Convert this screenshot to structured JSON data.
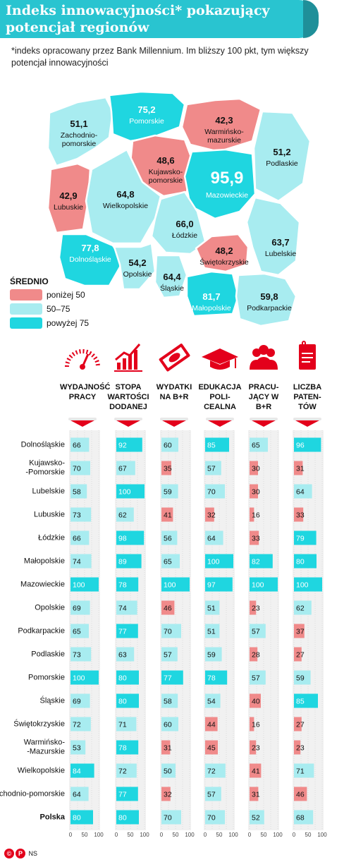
{
  "header": {
    "title": "Indeks innowacyjności* pokazujący potencjał regionów",
    "subtitle": "*indeks opracowany przez Bank Millennium. Im bliższy 100 pkt, tym większy potencjał innowacyjności"
  },
  "map": {
    "regions": [
      {
        "name": "Zachodnio-pomorskie",
        "value": "51,1",
        "category": "mid"
      },
      {
        "name": "Pomorskie",
        "value": "75,2",
        "category": "high"
      },
      {
        "name": "Warmińsko-mazurskie",
        "value": "42,3",
        "category": "low"
      },
      {
        "name": "Podlaskie",
        "value": "51,2",
        "category": "mid"
      },
      {
        "name": "Kujawsko-pomorskie",
        "value": "48,6",
        "category": "low"
      },
      {
        "name": "Mazowieckie",
        "value": "95,9",
        "category": "high"
      },
      {
        "name": "Lubuskie",
        "value": "42,9",
        "category": "low"
      },
      {
        "name": "Wielkopolskie",
        "value": "64,8",
        "category": "mid"
      },
      {
        "name": "Łódzkie",
        "value": "66,0",
        "category": "mid"
      },
      {
        "name": "Lubelskie",
        "value": "63,7",
        "category": "mid"
      },
      {
        "name": "Dolnośląskie",
        "value": "77,8",
        "category": "high"
      },
      {
        "name": "Opolskie",
        "value": "54,2",
        "category": "mid"
      },
      {
        "name": "Świętokrzyskie",
        "value": "48,2",
        "category": "low"
      },
      {
        "name": "Śląskie",
        "value": "64,4",
        "category": "mid"
      },
      {
        "name": "Małopolskie",
        "value": "81,7",
        "category": "high"
      },
      {
        "name": "Podkarpackie",
        "value": "59,8",
        "category": "mid"
      }
    ]
  },
  "legend": {
    "title": "ŚREDNIO",
    "items": [
      {
        "label": "poniżej 50",
        "color": "#f08a8a"
      },
      {
        "label": "50–75",
        "color": "#a8ecf0"
      },
      {
        "label": "powyżej 75",
        "color": "#1fd6e0"
      }
    ]
  },
  "colors": {
    "low": "#f08a8a",
    "mid": "#a8ecf0",
    "high": "#1fd6e0",
    "accent": "#e3001b",
    "title_bg": "#29c4d0"
  },
  "columns": [
    {
      "label": "WYDAJNOŚĆ PRACY",
      "icon": "gauge-icon"
    },
    {
      "label": "STOPA WARTOŚCI DODANEJ",
      "icon": "growth-chart-icon"
    },
    {
      "label": "WYDATKI NA B+R",
      "icon": "banknote-icon"
    },
    {
      "label": "EDUKACJA POLI-CEALNA",
      "icon": "graduation-cap-icon"
    },
    {
      "label": "PRACU-JĄCY W B+R",
      "icon": "people-icon"
    },
    {
      "label": "LICZBA PATEN-TÓW",
      "icon": "patent-document-icon"
    }
  ],
  "chart_data": {
    "type": "bar",
    "categories": [
      "Dolnośląskie",
      "Kujawsko--Pomorskie",
      "Lubelskie",
      "Lubuskie",
      "Łódzkie",
      "Małopolskie",
      "Mazowieckie",
      "Opolskie",
      "Podkarpackie",
      "Podlaskie",
      "Pomorskie",
      "Śląskie",
      "Świętokrzyskie",
      "Warmińsko--Mazurskie",
      "Wielkopolskie",
      "Zachodnio-pomorskie",
      "Polska"
    ],
    "series": [
      {
        "name": "WYDAJNOŚĆ PRACY",
        "values": [
          66,
          70,
          58,
          73,
          66,
          74,
          100,
          69,
          65,
          73,
          100,
          69,
          72,
          53,
          84,
          64,
          80
        ]
      },
      {
        "name": "STOPA WARTOŚCI DODANEJ",
        "values": [
          92,
          67,
          100,
          62,
          98,
          89,
          78,
          74,
          77,
          63,
          80,
          80,
          71,
          78,
          72,
          77,
          80
        ]
      },
      {
        "name": "WYDATKI NA B+R",
        "values": [
          60,
          35,
          59,
          41,
          56,
          65,
          100,
          46,
          70,
          57,
          77,
          58,
          60,
          31,
          50,
          32,
          70
        ]
      },
      {
        "name": "EDUKACJA POLI-CEALNA",
        "values": [
          85,
          57,
          70,
          32,
          64,
          100,
          97,
          51,
          51,
          59,
          78,
          54,
          44,
          45,
          72,
          57,
          70
        ]
      },
      {
        "name": "PRACU-JĄCY W B+R",
        "values": [
          65,
          30,
          30,
          16,
          33,
          82,
          100,
          23,
          57,
          28,
          57,
          40,
          16,
          23,
          41,
          31,
          52
        ]
      },
      {
        "name": "LICZBA PATEN-TÓW",
        "values": [
          96,
          31,
          64,
          33,
          79,
          80,
          100,
          62,
          37,
          27,
          59,
          85,
          27,
          23,
          71,
          46,
          68
        ]
      }
    ],
    "xlim": [
      0,
      100
    ],
    "xticks": [
      "0",
      "50",
      "100"
    ],
    "bold_category": "Polska"
  },
  "footer": {
    "logo_text": "©",
    "credit": "NS"
  }
}
